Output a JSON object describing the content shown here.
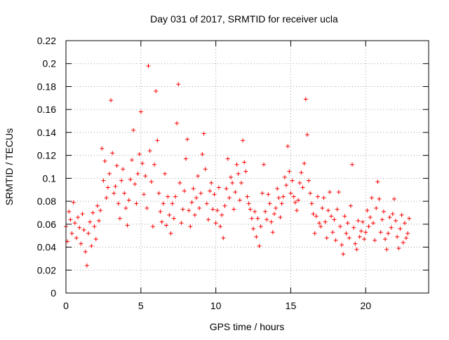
{
  "chart_data": {
    "type": "scatter",
    "title": "Day 031 of 2017, SRMTID for receiver ucla",
    "xlabel": "GPS time / hours",
    "ylabel": "SRMTID / TECUs",
    "xlim": [
      0,
      24.2
    ],
    "ylim": [
      0,
      0.22
    ],
    "x_ticks": [
      "0",
      "5",
      "10",
      "15",
      "20"
    ],
    "y_ticks": [
      "0",
      "0.02",
      "0.04",
      "0.06",
      "0.08",
      "0.1",
      "0.12",
      "0.14",
      "0.16",
      "0.18",
      "0.2",
      "0.22"
    ],
    "grid": true,
    "marker": "+",
    "color": "#ff0000",
    "series": [
      {
        "x": [
          0.0,
          0.1,
          0.2,
          0.3,
          0.4,
          0.5,
          0.6,
          0.7,
          0.8,
          0.9,
          1.0,
          1.1,
          1.2,
          1.3,
          1.4,
          1.5,
          1.6,
          1.7,
          1.8,
          1.9,
          2.0,
          2.1,
          2.2,
          2.3,
          2.4,
          2.5,
          2.6,
          2.7,
          2.8,
          2.9,
          3.0,
          3.1,
          3.2,
          3.3,
          3.4,
          3.5,
          3.6,
          3.7,
          3.8,
          3.9,
          4.0,
          4.1,
          4.2,
          4.3,
          4.4,
          4.5,
          4.6,
          4.7,
          4.8,
          4.9,
          5.0,
          5.1,
          5.2,
          5.3,
          5.4,
          5.5,
          5.6,
          5.7,
          5.8,
          5.9,
          6.0,
          6.1,
          6.2,
          6.3,
          6.4,
          6.5,
          6.6,
          6.7,
          6.8,
          6.9,
          7.0,
          7.1,
          7.2,
          7.3,
          7.4,
          7.5,
          7.6,
          7.7,
          7.8,
          7.9,
          8.0,
          8.1,
          8.2,
          8.3,
          8.4,
          8.5,
          8.6,
          8.7,
          8.8,
          8.9,
          9.0,
          9.1,
          9.2,
          9.3,
          9.4,
          9.5,
          9.6,
          9.7,
          9.8,
          9.9,
          10.0,
          10.1,
          10.2,
          10.3,
          10.4,
          10.5,
          10.6,
          10.7,
          10.8,
          10.9,
          11.0,
          11.1,
          11.2,
          11.3,
          11.4,
          11.5,
          11.6,
          11.7,
          11.8,
          11.9,
          12.0,
          12.1,
          12.2,
          12.3,
          12.4,
          12.5,
          12.6,
          12.7,
          12.8,
          12.9,
          13.0,
          13.1,
          13.2,
          13.3,
          13.4,
          13.5,
          13.6,
          13.7,
          13.8,
          13.9,
          14.0,
          14.1,
          14.2,
          14.3,
          14.4,
          14.5,
          14.6,
          14.7,
          14.8,
          14.9,
          15.0,
          15.1,
          15.2,
          15.3,
          15.4,
          15.5,
          15.6,
          15.7,
          15.8,
          15.9,
          16.0,
          16.1,
          16.2,
          16.3,
          16.4,
          16.5,
          16.6,
          16.7,
          16.8,
          16.9,
          17.0,
          17.1,
          17.2,
          17.3,
          17.4,
          17.5,
          17.6,
          17.7,
          17.8,
          17.9,
          18.0,
          18.1,
          18.2,
          18.3,
          18.4,
          18.5,
          18.6,
          18.7,
          18.8,
          18.9,
          19.0,
          19.1,
          19.2,
          19.3,
          19.4,
          19.5,
          19.6,
          19.7,
          19.8,
          19.9,
          20.0,
          20.1,
          20.2,
          20.3,
          20.4,
          20.5,
          20.6,
          20.7,
          20.8,
          20.9,
          21.0,
          21.1,
          21.2,
          21.3,
          21.4,
          21.5,
          21.6,
          21.7,
          21.8,
          21.9,
          22.0,
          22.1,
          22.2,
          22.3,
          22.4,
          22.5,
          22.6,
          22.7,
          22.8,
          22.9
        ],
        "y": [
          0.058,
          0.045,
          0.071,
          0.064,
          0.052,
          0.079,
          0.061,
          0.048,
          0.066,
          0.057,
          0.043,
          0.069,
          0.055,
          0.036,
          0.024,
          0.052,
          0.062,
          0.041,
          0.07,
          0.058,
          0.047,
          0.076,
          0.063,
          0.072,
          0.126,
          0.098,
          0.115,
          0.083,
          0.092,
          0.104,
          0.168,
          0.122,
          0.087,
          0.093,
          0.111,
          0.078,
          0.065,
          0.098,
          0.108,
          0.087,
          0.074,
          0.059,
          0.081,
          0.099,
          0.116,
          0.142,
          0.095,
          0.078,
          0.104,
          0.121,
          0.158,
          0.113,
          0.086,
          0.102,
          0.074,
          0.198,
          0.124,
          0.097,
          0.058,
          0.112,
          0.176,
          0.133,
          0.087,
          0.071,
          0.062,
          0.078,
          0.104,
          0.059,
          0.084,
          0.068,
          0.052,
          0.078,
          0.065,
          0.084,
          0.148,
          0.182,
          0.096,
          0.061,
          0.073,
          0.089,
          0.117,
          0.134,
          0.072,
          0.058,
          0.079,
          0.091,
          0.068,
          0.083,
          0.102,
          0.074,
          0.087,
          0.121,
          0.139,
          0.108,
          0.078,
          0.064,
          0.089,
          0.096,
          0.073,
          0.086,
          0.061,
          0.072,
          0.092,
          0.058,
          0.068,
          0.048,
          0.076,
          0.091,
          0.117,
          0.083,
          0.101,
          0.096,
          0.073,
          0.088,
          0.112,
          0.104,
          0.081,
          0.096,
          0.133,
          0.114,
          0.106,
          0.084,
          0.078,
          0.073,
          0.065,
          0.056,
          0.071,
          0.049,
          0.065,
          0.041,
          0.058,
          0.087,
          0.112,
          0.071,
          0.064,
          0.086,
          0.078,
          0.062,
          0.053,
          0.069,
          0.074,
          0.091,
          0.083,
          0.066,
          0.078,
          0.084,
          0.101,
          0.094,
          0.128,
          0.106,
          0.087,
          0.098,
          0.084,
          0.079,
          0.072,
          0.081,
          0.096,
          0.105,
          0.092,
          0.113,
          0.169,
          0.138,
          0.098,
          0.087,
          0.078,
          0.069,
          0.052,
          0.067,
          0.084,
          0.061,
          0.058,
          0.074,
          0.083,
          0.062,
          0.048,
          0.072,
          0.088,
          0.067,
          0.053,
          0.064,
          0.046,
          0.073,
          0.088,
          0.058,
          0.042,
          0.034,
          0.067,
          0.052,
          0.061,
          0.048,
          0.076,
          0.112,
          0.057,
          0.043,
          0.038,
          0.063,
          0.049,
          0.054,
          0.062,
          0.047,
          0.053,
          0.072,
          0.058,
          0.066,
          0.083,
          0.061,
          0.046,
          0.074,
          0.097,
          0.082,
          0.053,
          0.064,
          0.071,
          0.047,
          0.038,
          0.052,
          0.066,
          0.057,
          0.069,
          0.082,
          0.063,
          0.049,
          0.039,
          0.056,
          0.068,
          0.044,
          0.061,
          0.048,
          0.052,
          0.065
        ]
      }
    ]
  }
}
